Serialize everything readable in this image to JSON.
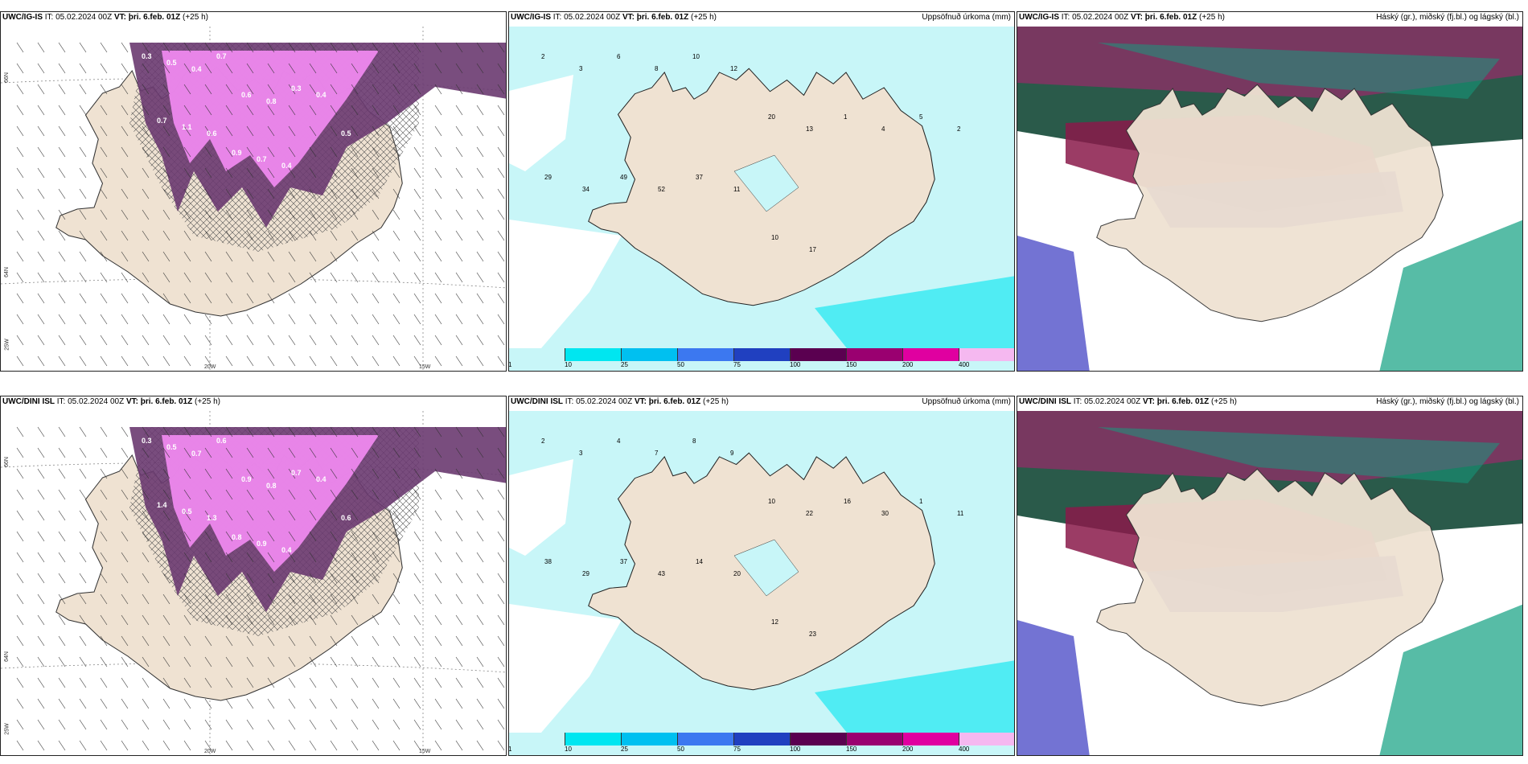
{
  "panels": [
    {
      "model": "UWC/IG-IS",
      "it_label": "IT:",
      "it_value": "05.02.2024 00Z",
      "vt_label": "VT:",
      "vt_value": "þri. 6.feb. 01Z",
      "lead": "(+25 h)",
      "right_title": ""
    },
    {
      "model": "UWC/IG-IS",
      "it_label": "IT:",
      "it_value": "05.02.2024 00Z",
      "vt_label": "VT:",
      "vt_value": "þri. 6.feb. 01Z",
      "lead": "(+25 h)",
      "right_title": "Uppsöfnuð úrkoma (mm)"
    },
    {
      "model": "UWC/IG-IS",
      "it_label": "IT:",
      "it_value": "05.02.2024 00Z",
      "vt_label": "VT:",
      "vt_value": "þri. 6.feb. 01Z",
      "lead": "(+25 h)",
      "right_title": "Háský (gr.), miðský (fj.bl.) og lágský (bl.)"
    },
    {
      "model": "UWC/DINI ISL",
      "it_label": "IT:",
      "it_value": "05.02.2024 00Z",
      "vt_label": "VT:",
      "vt_value": "þri. 6.feb. 01Z",
      "lead": "(+25 h)",
      "right_title": ""
    },
    {
      "model": "UWC/DINI ISL",
      "it_label": "IT:",
      "it_value": "05.02.2024 00Z",
      "vt_label": "VT:",
      "vt_value": "þri. 6.feb. 01Z",
      "lead": "(+25 h)",
      "right_title": "Uppsöfnuð úrkoma (mm)"
    },
    {
      "model": "UWC/DINI ISL",
      "it_label": "IT:",
      "it_value": "05.02.2024 00Z",
      "vt_label": "VT:",
      "vt_value": "þri. 6.feb. 01Z",
      "lead": "(+25 h)",
      "right_title": "Háský (gr.), miðský (fj.bl.) og lágský (bl.)"
    }
  ],
  "axis_labels": {
    "lat66": "66N",
    "lat64": "64N",
    "lon25": "25W",
    "lon20": "20W",
    "lon15": "15W"
  },
  "colorbar": {
    "labels": [
      "1",
      "10",
      "25",
      "50",
      "75",
      "100",
      "150",
      "200",
      "400"
    ],
    "colors": [
      "#c8f6f8",
      "#00e6f0",
      "#00c0f0",
      "#3c78f0",
      "#2040c0",
      "#5a0050",
      "#9a0070",
      "#e000a0",
      "#f5b8f0"
    ]
  },
  "snow_labels_top": [
    "0.3",
    "0.5",
    "0.4",
    "0.7",
    "0.6",
    "0.8",
    "0.3",
    "0.4",
    "0.5",
    "0.7",
    "1.1",
    "0.6",
    "0.9",
    "0.7",
    "0.4"
  ],
  "snow_labels_bottom": [
    "0.3",
    "0.5",
    "0.7",
    "0.6",
    "0.9",
    "0.8",
    "0.7",
    "0.4",
    "0.6",
    "1.4",
    "0.5",
    "1.3",
    "0.8",
    "0.9",
    "0.4"
  ],
  "precip_labels_top": [
    "2",
    "3",
    "6",
    "8",
    "10",
    "12",
    "20",
    "13",
    "1",
    "4",
    "5",
    "2",
    "29",
    "34",
    "49",
    "52",
    "37",
    "11",
    "10",
    "17"
  ],
  "precip_labels_bottom": [
    "2",
    "3",
    "4",
    "7",
    "8",
    "9",
    "10",
    "22",
    "16",
    "30",
    "1",
    "11",
    "38",
    "29",
    "37",
    "43",
    "14",
    "20",
    "12",
    "23"
  ],
  "colors": {
    "land": "#efe2d2",
    "sea_precip": "#c8f6f8",
    "snow_light": "#ee88ee",
    "snow_dark": "#6a3a70",
    "cloud_high": "#2a5a4a",
    "cloud_mid": "#5050c8",
    "cloud_low": "#8a1a4a",
    "cloud_green": "#10a080"
  }
}
